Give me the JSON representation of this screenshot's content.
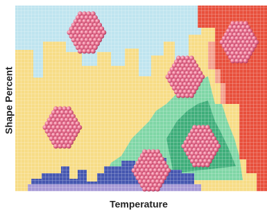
{
  "axes": {
    "y_label": "Shape Percent",
    "x_label": "Temperature"
  }
}
